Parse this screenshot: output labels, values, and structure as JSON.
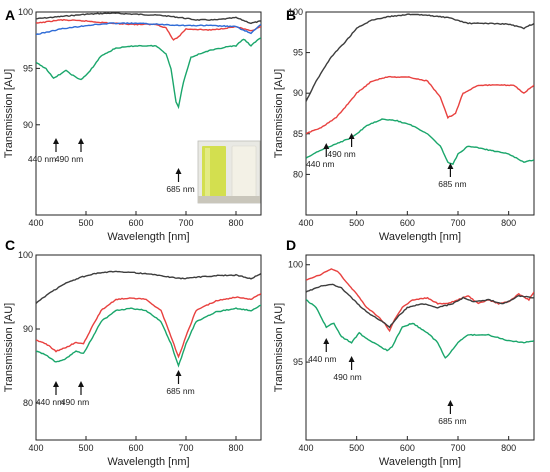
{
  "figure_labels": [
    "A",
    "B",
    "C",
    "D"
  ],
  "colors": {
    "black": "#3d3d3d",
    "red": "#e8413f",
    "blue": "#2e6bd6",
    "green": "#1aa66b"
  },
  "chart_data": [
    {
      "panel": "A",
      "type": "line",
      "xlabel": "Wavelength [nm]",
      "ylabel": "Transmission [AU]",
      "xlim": [
        400,
        850
      ],
      "ylim": [
        82,
        100
      ],
      "xticks": [
        400,
        500,
        600,
        700,
        800
      ],
      "yticks": [
        90,
        95,
        100
      ],
      "inset": "photo-of-two-cuvettes",
      "series": [
        {
          "color": "#3d3d3d",
          "points": [
            [
              400,
              99.4
            ],
            [
              450,
              99.6
            ],
            [
              500,
              99.8
            ],
            [
              550,
              99.9
            ],
            [
              600,
              99.8
            ],
            [
              650,
              99.7
            ],
            [
              670,
              99.6
            ],
            [
              690,
              99.5
            ],
            [
              720,
              99.3
            ],
            [
              760,
              99.3
            ],
            [
              800,
              99.5
            ],
            [
              830,
              99.0
            ],
            [
              850,
              99.2
            ]
          ]
        },
        {
          "color": "#e8413f",
          "points": [
            [
              400,
              99.0
            ],
            [
              450,
              99.3
            ],
            [
              500,
              99.2
            ],
            [
              550,
              99.0
            ],
            [
              600,
              98.9
            ],
            [
              640,
              98.9
            ],
            [
              660,
              98.6
            ],
            [
              675,
              97.5
            ],
            [
              685,
              97.8
            ],
            [
              700,
              98.5
            ],
            [
              750,
              98.4
            ],
            [
              800,
              98.7
            ],
            [
              830,
              98.3
            ],
            [
              850,
              98.7
            ]
          ]
        },
        {
          "color": "#2e6bd6",
          "points": [
            [
              400,
              98.0
            ],
            [
              450,
              98.5
            ],
            [
              500,
              98.8
            ],
            [
              550,
              99.0
            ],
            [
              600,
              99.0
            ],
            [
              650,
              98.9
            ],
            [
              700,
              98.8
            ],
            [
              750,
              98.8
            ],
            [
              800,
              98.7
            ],
            [
              830,
              98.1
            ],
            [
              850,
              98.9
            ]
          ]
        },
        {
          "color": "#1aa66b",
          "points": [
            [
              400,
              95.5
            ],
            [
              420,
              95.0
            ],
            [
              435,
              94.1
            ],
            [
              445,
              94.4
            ],
            [
              460,
              94.8
            ],
            [
              480,
              94.2
            ],
            [
              490,
              94.0
            ],
            [
              505,
              94.6
            ],
            [
              530,
              96.1
            ],
            [
              560,
              96.8
            ],
            [
              600,
              97.0
            ],
            [
              640,
              97.0
            ],
            [
              660,
              96.3
            ],
            [
              670,
              95.0
            ],
            [
              680,
              92.0
            ],
            [
              685,
              91.6
            ],
            [
              695,
              93.8
            ],
            [
              710,
              96.0
            ],
            [
              740,
              96.5
            ],
            [
              780,
              96.9
            ],
            [
              800,
              97.0
            ],
            [
              815,
              97.6
            ],
            [
              830,
              97.0
            ],
            [
              845,
              97.6
            ],
            [
              850,
              97.7
            ]
          ]
        }
      ],
      "annotations": [
        {
          "text": "440 nm",
          "x": 440
        },
        {
          "text": "490 nm",
          "x": 490
        },
        {
          "text": "685 nm",
          "x": 685
        }
      ]
    },
    {
      "panel": "B",
      "type": "line",
      "xlabel": "Wavelength [nm]",
      "ylabel": "Transmission [AU]",
      "xlim": [
        400,
        850
      ],
      "ylim": [
        75,
        100
      ],
      "xticks": [
        400,
        500,
        600,
        700,
        800
      ],
      "yticks": [
        80,
        85,
        90,
        95,
        100
      ],
      "series": [
        {
          "color": "#3d3d3d",
          "points": [
            [
              400,
              89.0
            ],
            [
              420,
              91.5
            ],
            [
              450,
              94.5
            ],
            [
              480,
              96.5
            ],
            [
              500,
              98.0
            ],
            [
              530,
              99.0
            ],
            [
              560,
              99.4
            ],
            [
              600,
              99.7
            ],
            [
              640,
              99.6
            ],
            [
              680,
              99.3
            ],
            [
              720,
              98.6
            ],
            [
              760,
              98.6
            ],
            [
              800,
              98.5
            ],
            [
              830,
              98.0
            ],
            [
              850,
              98.6
            ]
          ]
        },
        {
          "color": "#e8413f",
          "points": [
            [
              400,
              85.0
            ],
            [
              430,
              85.8
            ],
            [
              460,
              87.0
            ],
            [
              480,
              88.5
            ],
            [
              500,
              90.0
            ],
            [
              530,
              91.5
            ],
            [
              560,
              92.0
            ],
            [
              600,
              92.0
            ],
            [
              640,
              91.5
            ],
            [
              665,
              89.5
            ],
            [
              680,
              87.0
            ],
            [
              695,
              87.5
            ],
            [
              710,
              90.0
            ],
            [
              740,
              91.0
            ],
            [
              780,
              91.0
            ],
            [
              810,
              91.0
            ],
            [
              830,
              90.0
            ],
            [
              850,
              91.0
            ]
          ]
        },
        {
          "color": "#1aa66b",
          "points": [
            [
              400,
              82.0
            ],
            [
              430,
              83.0
            ],
            [
              460,
              83.8
            ],
            [
              490,
              84.5
            ],
            [
              520,
              86.0
            ],
            [
              550,
              86.8
            ],
            [
              580,
              86.6
            ],
            [
              610,
              86.0
            ],
            [
              640,
              85.0
            ],
            [
              665,
              83.5
            ],
            [
              680,
              81.5
            ],
            [
              690,
              81.3
            ],
            [
              700,
              82.5
            ],
            [
              720,
              83.5
            ],
            [
              760,
              83.0
            ],
            [
              800,
              82.5
            ],
            [
              830,
              81.5
            ],
            [
              850,
              81.8
            ]
          ]
        }
      ],
      "annotations": [
        {
          "text": "440 nm",
          "x": 440
        },
        {
          "text": "490 nm",
          "x": 490
        },
        {
          "text": "685 nm",
          "x": 685
        }
      ]
    },
    {
      "panel": "C",
      "type": "line",
      "xlabel": "Wavelength [nm]",
      "ylabel": "Transmission [AU]",
      "xlim": [
        400,
        850
      ],
      "ylim": [
        75,
        100
      ],
      "xticks": [
        400,
        500,
        600,
        700,
        800
      ],
      "yticks": [
        80,
        90,
        100
      ],
      "series": [
        {
          "color": "#3d3d3d",
          "points": [
            [
              400,
              93.5
            ],
            [
              430,
              95.0
            ],
            [
              460,
              96.2
            ],
            [
              490,
              97.0
            ],
            [
              520,
              97.5
            ],
            [
              560,
              97.8
            ],
            [
              600,
              97.6
            ],
            [
              640,
              97.3
            ],
            [
              670,
              97.0
            ],
            [
              690,
              96.8
            ],
            [
              720,
              97.0
            ],
            [
              760,
              97.2
            ],
            [
              800,
              97.3
            ],
            [
              830,
              96.8
            ],
            [
              850,
              97.5
            ]
          ]
        },
        {
          "color": "#e8413f",
          "points": [
            [
              400,
              88.5
            ],
            [
              420,
              88.0
            ],
            [
              440,
              87.0
            ],
            [
              460,
              87.5
            ],
            [
              480,
              88.2
            ],
            [
              495,
              88.0
            ],
            [
              510,
              90.0
            ],
            [
              530,
              92.5
            ],
            [
              560,
              94.0
            ],
            [
              590,
              94.2
            ],
            [
              620,
              94.0
            ],
            [
              650,
              92.5
            ],
            [
              670,
              89.0
            ],
            [
              685,
              86.2
            ],
            [
              700,
              89.0
            ],
            [
              720,
              92.5
            ],
            [
              760,
              93.8
            ],
            [
              800,
              94.3
            ],
            [
              830,
              94.0
            ],
            [
              850,
              94.8
            ]
          ]
        },
        {
          "color": "#1aa66b",
          "points": [
            [
              400,
              87.0
            ],
            [
              420,
              86.5
            ],
            [
              440,
              85.5
            ],
            [
              460,
              86.0
            ],
            [
              480,
              87.0
            ],
            [
              495,
              86.7
            ],
            [
              510,
              88.5
            ],
            [
              530,
              91.0
            ],
            [
              560,
              92.5
            ],
            [
              590,
              92.8
            ],
            [
              620,
              92.5
            ],
            [
              650,
              91.0
            ],
            [
              670,
              88.0
            ],
            [
              685,
              85.0
            ],
            [
              700,
              88.0
            ],
            [
              720,
              91.0
            ],
            [
              760,
              92.3
            ],
            [
              800,
              92.8
            ],
            [
              830,
              92.5
            ],
            [
              850,
              93.2
            ]
          ]
        }
      ],
      "annotations": [
        {
          "text": "440 nm",
          "x": 440
        },
        {
          "text": "490 nm",
          "x": 490
        },
        {
          "text": "685 nm",
          "x": 685
        }
      ]
    },
    {
      "panel": "D",
      "type": "line",
      "xlabel": "Wavelength [nm]",
      "ylabel": "Transmission [AU]",
      "xlim": [
        400,
        850
      ],
      "ylim": [
        91,
        100.5
      ],
      "xticks": [
        400,
        500,
        600,
        700,
        800
      ],
      "yticks": [
        95,
        100
      ],
      "series": [
        {
          "color": "#e8413f",
          "points": [
            [
              400,
              99.2
            ],
            [
              430,
              99.5
            ],
            [
              450,
              99.8
            ],
            [
              465,
              99.6
            ],
            [
              480,
              99.1
            ],
            [
              500,
              98.5
            ],
            [
              520,
              97.8
            ],
            [
              540,
              97.4
            ],
            [
              555,
              97.0
            ],
            [
              565,
              96.6
            ],
            [
              575,
              97.2
            ],
            [
              590,
              97.8
            ],
            [
              610,
              98.2
            ],
            [
              640,
              98.3
            ],
            [
              660,
              98.0
            ],
            [
              680,
              98.0
            ],
            [
              700,
              98.2
            ],
            [
              720,
              98.4
            ],
            [
              740,
              98.0
            ],
            [
              760,
              98.2
            ],
            [
              780,
              98.0
            ],
            [
              800,
              98.1
            ],
            [
              820,
              98.5
            ],
            [
              840,
              98.2
            ],
            [
              850,
              98.6
            ]
          ]
        },
        {
          "color": "#3d3d3d",
          "points": [
            [
              400,
              98.6
            ],
            [
              430,
              98.9
            ],
            [
              450,
              99.0
            ],
            [
              470,
              98.8
            ],
            [
              490,
              98.3
            ],
            [
              510,
              97.8
            ],
            [
              530,
              97.4
            ],
            [
              550,
              97.1
            ],
            [
              565,
              96.8
            ],
            [
              580,
              97.3
            ],
            [
              600,
              97.8
            ],
            [
              630,
              98.0
            ],
            [
              660,
              97.8
            ],
            [
              690,
              98.0
            ],
            [
              710,
              98.3
            ],
            [
              730,
              98.1
            ],
            [
              760,
              98.2
            ],
            [
              790,
              98.0
            ],
            [
              820,
              98.4
            ],
            [
              850,
              98.3
            ]
          ]
        },
        {
          "color": "#1aa66b",
          "points": [
            [
              400,
              98.2
            ],
            [
              420,
              97.8
            ],
            [
              440,
              96.8
            ],
            [
              455,
              97.0
            ],
            [
              470,
              96.3
            ],
            [
              490,
              96.0
            ],
            [
              505,
              96.5
            ],
            [
              520,
              96.2
            ],
            [
              540,
              95.9
            ],
            [
              560,
              95.6
            ],
            [
              570,
              95.8
            ],
            [
              590,
              96.8
            ],
            [
              610,
              97.0
            ],
            [
              640,
              96.5
            ],
            [
              660,
              96.0
            ],
            [
              675,
              95.2
            ],
            [
              685,
              95.5
            ],
            [
              700,
              96.0
            ],
            [
              720,
              96.4
            ],
            [
              760,
              96.4
            ],
            [
              800,
              96.1
            ],
            [
              830,
              96.0
            ],
            [
              850,
              96.1
            ]
          ]
        }
      ],
      "annotations": [
        {
          "text": "440 nm",
          "x": 440
        },
        {
          "text": "490 nm",
          "x": 490
        },
        {
          "text": "685 nm",
          "x": 685
        }
      ]
    }
  ]
}
